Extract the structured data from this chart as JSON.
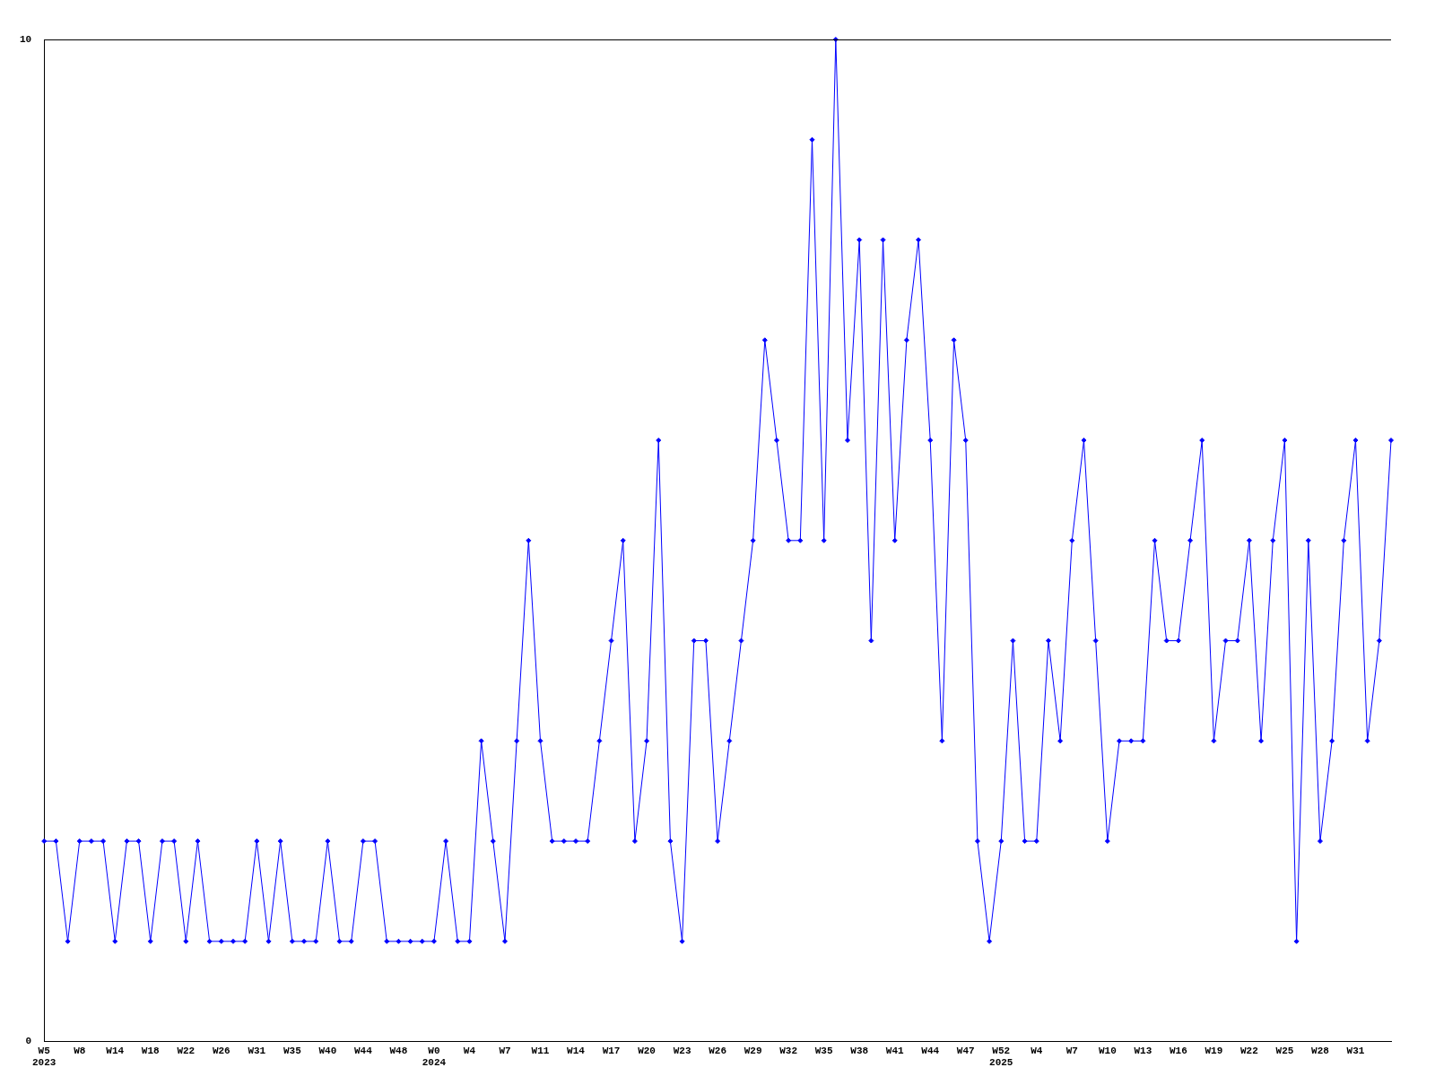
{
  "chart_data": {
    "type": "line",
    "categories": [
      "W5\n2023",
      null,
      null,
      "W8",
      null,
      null,
      "W14",
      null,
      null,
      "W18",
      null,
      null,
      "W22",
      null,
      null,
      "W26",
      null,
      null,
      "W31",
      null,
      null,
      "W35",
      null,
      null,
      "W40",
      null,
      null,
      "W44",
      null,
      null,
      "W48",
      null,
      null,
      "W0\n2024",
      null,
      null,
      "W4",
      null,
      null,
      "W7",
      null,
      null,
      "W11",
      null,
      null,
      "W14",
      null,
      null,
      "W17",
      null,
      null,
      "W20",
      null,
      null,
      "W23",
      null,
      null,
      "W26",
      null,
      null,
      "W29",
      null,
      null,
      "W32",
      null,
      null,
      "W35",
      null,
      null,
      "W38",
      null,
      null,
      "W41",
      null,
      null,
      "W44",
      null,
      null,
      "W47",
      null,
      null,
      "W52\n2025",
      null,
      null,
      "W4",
      null,
      null,
      "W7",
      null,
      null,
      "W10",
      null,
      null,
      "W13",
      null,
      null,
      "W16",
      null,
      null,
      "W19",
      null,
      null,
      "W22",
      null,
      null,
      "W25",
      null,
      null,
      "W28",
      null,
      null,
      "W31",
      null,
      null,
      null
    ],
    "series": [
      {
        "color": "#0000ff",
        "values": [
          2,
          2,
          1,
          2,
          2,
          2,
          1,
          2,
          2,
          1,
          2,
          2,
          1,
          2,
          1,
          1,
          1,
          1,
          2,
          1,
          2,
          1,
          1,
          1,
          2,
          1,
          1,
          2,
          2,
          1,
          1,
          1,
          1,
          1,
          2,
          1,
          1,
          3,
          2,
          1,
          3,
          5,
          3,
          2,
          2,
          2,
          2,
          3,
          4,
          5,
          2,
          3,
          6,
          2,
          1,
          4,
          4,
          2,
          3,
          4,
          5,
          7,
          6,
          5,
          5,
          9,
          5,
          10,
          6,
          8,
          4,
          8,
          5,
          7,
          8,
          6,
          3,
          7,
          6,
          2,
          1,
          2,
          4,
          2,
          2,
          4,
          3,
          5,
          6,
          4,
          2,
          3,
          3,
          3,
          5,
          4,
          4,
          5,
          6,
          3,
          4,
          4,
          5,
          3,
          5,
          6,
          1,
          5,
          2,
          3,
          5,
          6,
          3,
          4,
          6
        ]
      }
    ],
    "ylim": [
      0,
      10
    ],
    "yticks": [
      0,
      10
    ],
    "grid": false,
    "legend": false,
    "marker": "diamond",
    "line_style": "solid"
  }
}
